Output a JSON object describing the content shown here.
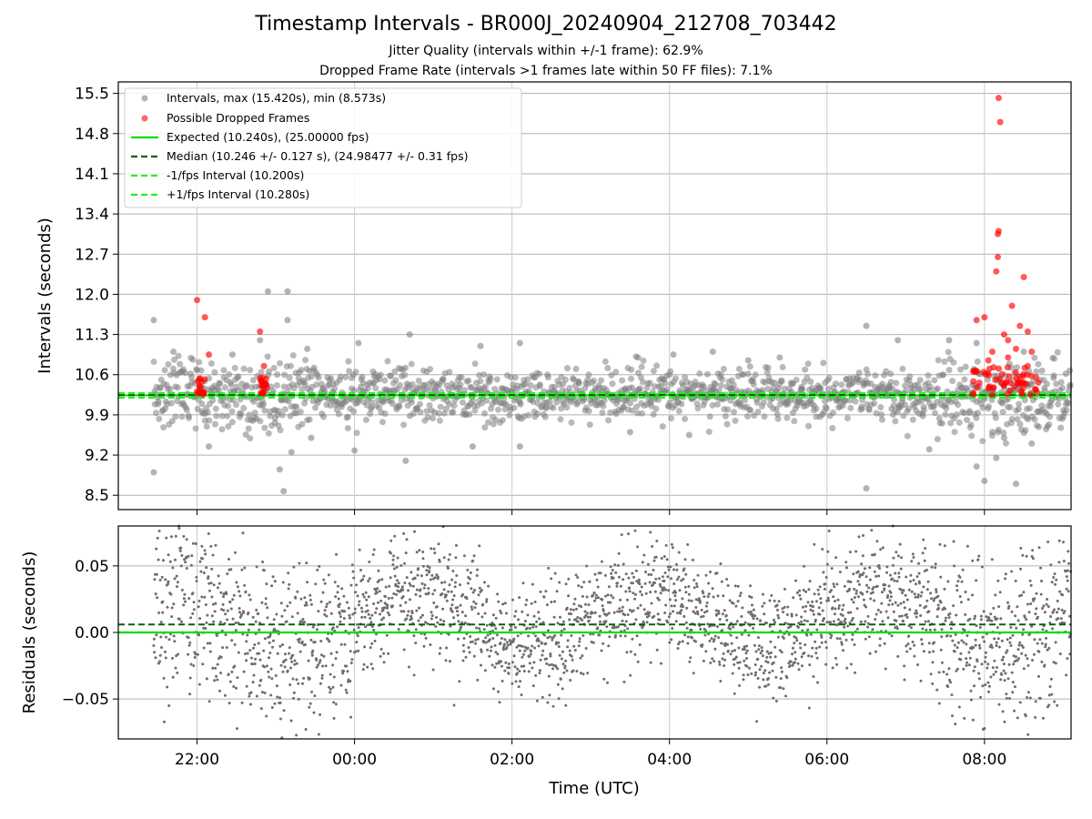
{
  "title": "Timestamp Intervals - BR000J_20240904_212708_703442",
  "subtitle_lines": [
    "Jitter Quality (intervals within +/-1 frame): 62.9%",
    "Dropped Frame Rate (intervals >1 frames late within 50 FF files): 7.1%"
  ],
  "colors": {
    "points": "#808080",
    "dropped": "#ff0000",
    "expected": "#00dd00",
    "median": "#006400",
    "bounds": "#22ee22",
    "grid": "#b0b0b0"
  },
  "chart_data": [
    {
      "type": "scatter",
      "ylabel": "Intervals (seconds)",
      "xlim_hours": [
        -3.0,
        9.1
      ],
      "ylim": [
        8.25,
        15.7
      ],
      "yticks": [
        "8.5",
        "9.2",
        "9.9",
        "10.6",
        "11.3",
        "12.0",
        "12.7",
        "13.4",
        "14.1",
        "14.8",
        "15.5"
      ],
      "xtick_values": [
        -2,
        0,
        2,
        4,
        6,
        8
      ],
      "legend": {
        "position": "upper-left",
        "entries": [
          "Intervals, max (15.420s), min (8.573s)",
          "Possible Dropped Frames",
          "Expected (10.240s), (25.00000 fps)",
          "Median (10.246 +/- 0.127 s), (24.98477 +/- 0.31 fps)",
          "-1/fps Interval (10.200s)",
          "+1/fps Interval (10.280s)"
        ]
      },
      "series": {
        "expected": 10.24,
        "median": 10.246,
        "lower": 10.2,
        "upper": 10.28,
        "outliers_gray": [
          [
            -2.55,
            8.9
          ],
          [
            -2.55,
            11.55
          ],
          [
            -2.3,
            11.0
          ],
          [
            -1.85,
            9.35
          ],
          [
            -1.55,
            10.95
          ],
          [
            -1.1,
            12.05
          ],
          [
            -0.85,
            12.05
          ],
          [
            -0.85,
            11.55
          ],
          [
            -0.9,
            8.57
          ],
          [
            -0.95,
            8.95
          ],
          [
            -0.8,
            9.25
          ],
          [
            -0.55,
            9.5
          ],
          [
            0.0,
            9.28
          ],
          [
            0.05,
            11.15
          ],
          [
            0.65,
            9.1
          ],
          [
            0.7,
            11.3
          ],
          [
            1.5,
            9.35
          ],
          [
            1.6,
            11.1
          ],
          [
            2.1,
            9.35
          ],
          [
            2.1,
            11.15
          ],
          [
            3.5,
            9.6
          ],
          [
            3.6,
            10.9
          ],
          [
            4.05,
            10.95
          ],
          [
            4.25,
            9.55
          ],
          [
            4.55,
            11.0
          ],
          [
            5.0,
            10.85
          ],
          [
            5.4,
            10.9
          ],
          [
            6.5,
            8.62
          ],
          [
            6.5,
            11.45
          ],
          [
            6.9,
            11.2
          ],
          [
            7.3,
            9.3
          ],
          [
            7.55,
            11.2
          ],
          [
            7.9,
            9.0
          ],
          [
            8.0,
            8.75
          ],
          [
            8.15,
            9.15
          ],
          [
            8.1,
            9.6
          ],
          [
            8.4,
            8.7
          ],
          [
            8.6,
            9.4
          ],
          [
            8.5,
            11.0
          ],
          [
            8.8,
            9.7
          ],
          [
            7.9,
            11.15
          ],
          [
            8.25,
            9.5
          ],
          [
            -1.2,
            11.2
          ],
          [
            -0.6,
            11.05
          ]
        ],
        "dropped": [
          [
            -2.0,
            11.9
          ],
          [
            -1.9,
            11.6
          ],
          [
            -1.85,
            10.95
          ],
          [
            -1.2,
            11.35
          ],
          [
            -1.15,
            10.75
          ],
          [
            7.9,
            11.55
          ],
          [
            8.0,
            11.6
          ],
          [
            8.15,
            12.4
          ],
          [
            8.17,
            12.65
          ],
          [
            8.17,
            13.05
          ],
          [
            8.18,
            13.1
          ],
          [
            8.18,
            15.42
          ],
          [
            8.2,
            15.0
          ],
          [
            8.35,
            11.8
          ],
          [
            8.5,
            12.3
          ],
          [
            8.45,
            11.45
          ],
          [
            8.55,
            11.35
          ],
          [
            8.3,
            11.2
          ],
          [
            8.4,
            11.05
          ],
          [
            8.6,
            11.0
          ],
          [
            8.25,
            11.3
          ],
          [
            8.1,
            11.0
          ],
          [
            8.05,
            10.85
          ],
          [
            8.3,
            10.9
          ],
          [
            8.55,
            10.75
          ]
        ]
      }
    },
    {
      "type": "scatter",
      "xlabel": "Time (UTC)",
      "ylabel": "Residuals (seconds)",
      "xlim_hours": [
        -3.0,
        9.1
      ],
      "ylim": [
        -0.08,
        0.08
      ],
      "yticks": [
        "−0.05",
        "0.00",
        "0.05"
      ],
      "ytick_values": [
        -0.05,
        0.0,
        0.05
      ],
      "xticks": [
        "22:00",
        "00:00",
        "02:00",
        "04:00",
        "06:00",
        "08:00"
      ],
      "xtick_values": [
        -2,
        0,
        2,
        4,
        6,
        8
      ],
      "series": {
        "zero": 0.0,
        "median": 0.006
      }
    }
  ]
}
